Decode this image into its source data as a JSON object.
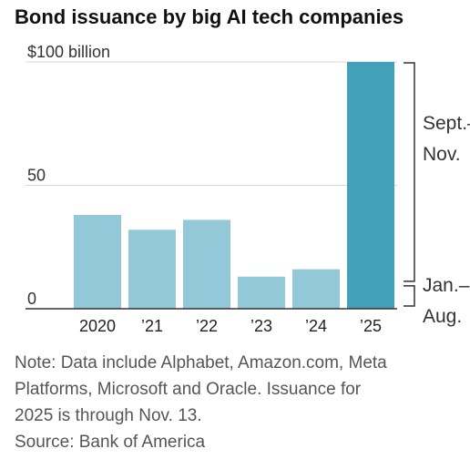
{
  "header": {
    "title": "Bond issuance by big AI tech companies"
  },
  "chart_data": {
    "type": "bar",
    "title": "Bond issuance by big AI tech companies",
    "xlabel": "",
    "ylabel": "",
    "ylim": [
      0,
      100
    ],
    "yticks": [
      {
        "value": 100,
        "label": "$100 billion"
      },
      {
        "value": 50,
        "label": "50"
      },
      {
        "value": 0,
        "label": "0"
      }
    ],
    "categories": [
      "2020",
      "’21",
      "’22",
      "’23",
      "’24",
      "’25"
    ],
    "values": [
      38,
      32,
      36,
      13,
      16,
      100
    ],
    "stacked_segments_2025": [
      {
        "label_lines": [
          "Jan.–",
          "Aug."
        ],
        "value": 10
      },
      {
        "label_lines": [
          "Sept.–",
          "Nov."
        ],
        "value": 90
      }
    ],
    "colors": {
      "bar": "#92c8d8",
      "highlight": "#42a0b9",
      "grid": "#d8d8d8",
      "axis": "#333333"
    },
    "grid": true,
    "legend": "none"
  },
  "notes": {
    "lines": [
      "Note: Data include Alphabet, Amazon.com, Meta",
      "Platforms, Microsoft and Oracle. Issuance for",
      "2025 is through Nov. 13.",
      "Source: Bank of America"
    ]
  }
}
